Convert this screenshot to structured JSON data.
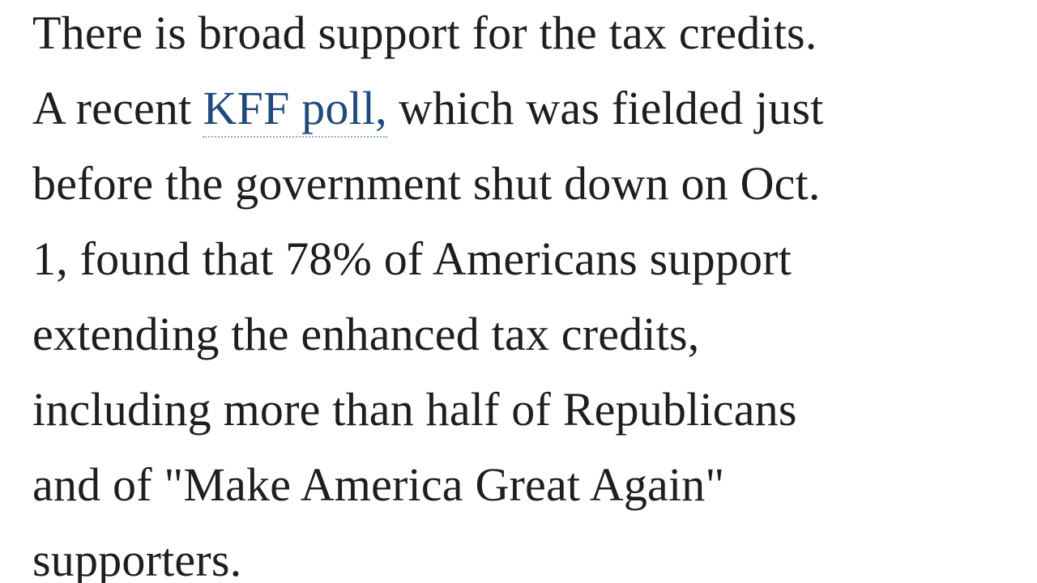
{
  "paragraph": {
    "lines": [
      {
        "text": "There is broad support for the tax credits."
      },
      {
        "before": "A recent",
        "link": "KFF poll,",
        "after": "which was fielded just"
      },
      {
        "text": "before the government shut down on Oct."
      },
      {
        "text": "1, found that 78% of Americans support"
      },
      {
        "text": "extending the enhanced tax credits,"
      },
      {
        "text": "including more than half of Republicans"
      },
      {
        "text": "and of \"Make America Great Again\""
      },
      {
        "text": "supporters."
      }
    ]
  }
}
